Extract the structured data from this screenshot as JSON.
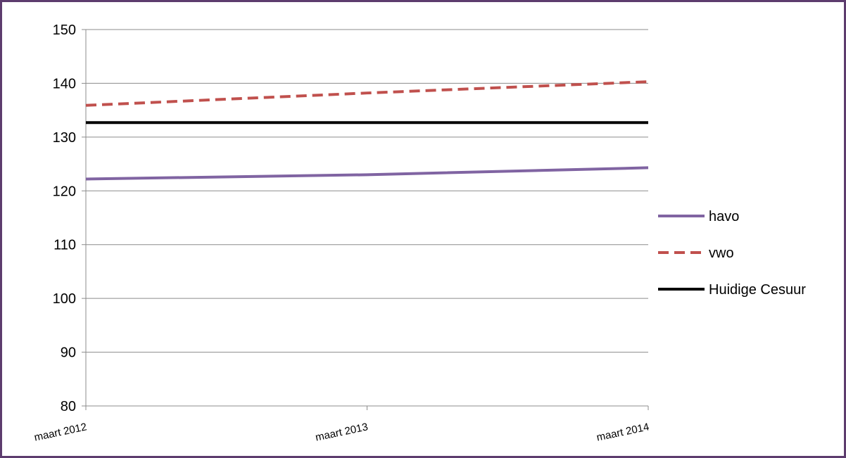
{
  "chart_data": {
    "type": "line",
    "title": "",
    "xlabel": "",
    "ylabel": "",
    "categories": [
      "maart 2012",
      "maart 2013",
      "maart 2014"
    ],
    "ylim": [
      80,
      150
    ],
    "yticks": [
      80,
      90,
      100,
      110,
      120,
      130,
      140,
      150
    ],
    "grid": "horizontal",
    "legend_position": "right",
    "series": [
      {
        "name": "havo",
        "values": [
          122.2,
          123.0,
          124.3
        ],
        "color": "#8064a2",
        "style": "solid"
      },
      {
        "name": "vwo",
        "values": [
          135.9,
          138.2,
          140.3
        ],
        "color": "#c0504d",
        "style": "dashed"
      },
      {
        "name": "Huidige Cesuur",
        "values": [
          132.7,
          132.7,
          132.7
        ],
        "color": "#000000",
        "style": "solid"
      }
    ]
  }
}
